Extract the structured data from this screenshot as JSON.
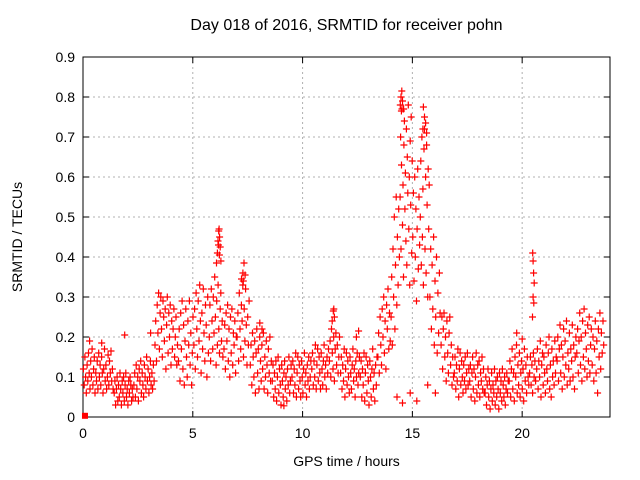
{
  "chart_data": {
    "type": "scatter",
    "title": "Day 018 of 2016, SRMTID for receiver pohn",
    "xlabel": "GPS time / hours",
    "ylabel": "SRMTID / TECUs",
    "xlim": [
      0,
      24
    ],
    "ylim": [
      0,
      0.9
    ],
    "xticks": [
      0,
      5,
      10,
      15,
      20
    ],
    "xtick_labels": [
      "0",
      "5",
      "10",
      "15",
      "20"
    ],
    "yticks": [
      0,
      0.1,
      0.2,
      0.3,
      0.4,
      0.5,
      0.6,
      0.7,
      0.8,
      0.9
    ],
    "ytick_labels": [
      "0",
      "0.1",
      "0.2",
      "0.3",
      "0.4",
      "0.5",
      "0.6",
      "0.7",
      "0.8",
      "0.9"
    ],
    "grid": true,
    "legend": "none",
    "marker": "plus",
    "origin_point": {
      "x": 0.09,
      "y": 0.003,
      "style": "filled-square"
    },
    "series_segments": [
      {
        "t0": 0.02,
        "dt": 0.033,
        "ys": [
          0.12,
          0.08,
          0.15,
          0.1,
          0.06,
          0.13,
          0.09,
          0.16,
          0.11,
          0.07,
          0.14,
          0.1,
          0.17,
          0.08,
          0.12,
          0.15,
          0.06,
          0.11,
          0.09,
          0.14,
          0.07,
          0.16,
          0.1,
          0.13,
          0.08,
          0.15,
          0.11,
          0.06,
          0.12,
          0.17,
          0.09,
          0.13,
          0.07,
          0.1,
          0.155,
          0.08,
          0.14,
          0.11,
          0.165,
          0.09,
          0.12,
          0.07
        ]
      },
      {
        "t0": 1.42,
        "dt": 0.033,
        "ys": [
          0.06,
          0.09,
          0.03,
          0.07,
          0.1,
          0.04,
          0.08,
          0.05,
          0.11,
          0.07,
          0.03,
          0.09,
          0.06,
          0.1,
          0.04,
          0.08,
          0.11,
          0.05,
          0.07,
          0.03,
          0.09,
          0.06,
          0.1,
          0.08,
          0.04,
          0.07,
          0.05
        ]
      },
      {
        "t0": 2.32,
        "dt": 0.034,
        "ys": [
          0.08,
          0.11,
          0.05,
          0.13,
          0.07,
          0.1,
          0.04,
          0.12,
          0.09,
          0.14,
          0.06,
          0.11,
          0.08,
          0.05,
          0.13,
          0.1,
          0.07,
          0.15,
          0.09,
          0.12,
          0.06,
          0.1,
          0.14,
          0.08,
          0.11,
          0.07,
          0.13,
          0.09
        ]
      },
      {
        "t0": 3.28,
        "dt": 0.033,
        "ys": [
          0.18,
          0.24,
          0.14,
          0.28,
          0.21,
          0.31,
          0.17,
          0.26,
          0.3,
          0.22,
          0.15,
          0.29,
          0.25,
          0.19,
          0.27,
          0.12,
          0.23,
          0.3,
          0.16,
          0.26,
          0.2,
          0.28,
          0.13,
          0.24,
          0.17,
          0.22,
          0.27,
          0.15,
          0.2,
          0.25,
          0.13,
          0.18
        ]
      },
      {
        "t0": 4.35,
        "dt": 0.033,
        "ys": [
          0.14,
          0.22,
          0.09,
          0.26,
          0.17,
          0.29,
          0.12,
          0.23,
          0.08,
          0.19,
          0.27,
          0.15,
          0.1,
          0.24,
          0.18,
          0.29,
          0.13,
          0.21,
          0.08,
          0.16,
          0.25
        ]
      },
      {
        "t0": 5.05,
        "dt": 0.033,
        "ys": [
          0.18,
          0.27,
          0.12,
          0.31,
          0.22,
          0.15,
          0.29,
          0.19,
          0.33,
          0.24,
          0.11,
          0.26,
          0.17,
          0.32,
          0.21,
          0.14,
          0.28,
          0.23,
          0.1,
          0.3,
          0.16
        ]
      },
      {
        "t0": 5.75,
        "dt": 0.031,
        "ys": [
          0.2,
          0.28,
          0.14,
          0.32,
          0.24,
          0.17,
          0.3,
          0.21,
          0.35,
          0.25,
          0.13,
          0.29,
          0.18,
          0.33,
          0.22,
          0.16,
          0.27,
          0.31,
          0.19,
          0.24,
          0.15
        ]
      },
      {
        "t0": 6.42,
        "dt": 0.033,
        "ys": [
          0.17,
          0.23,
          0.12,
          0.26,
          0.19,
          0.28,
          0.14,
          0.22,
          0.1,
          0.25,
          0.16,
          0.27,
          0.13,
          0.21,
          0.18,
          0.24,
          0.11,
          0.2
        ]
      },
      {
        "t0": 7.02,
        "dt": 0.032,
        "ys": [
          0.2,
          0.26,
          0.14,
          0.31,
          0.22,
          0.17,
          0.28,
          0.24,
          0.33,
          0.15,
          0.27,
          0.19,
          0.32,
          0.23,
          0.13,
          0.25,
          0.18,
          0.29
        ]
      },
      {
        "t0": 7.62,
        "dt": 0.033,
        "ys": [
          0.13,
          0.18,
          0.08,
          0.21,
          0.15,
          0.1,
          0.19,
          0.06,
          0.16,
          0.22,
          0.11,
          0.17,
          0.07,
          0.2,
          0.14,
          0.09,
          0.18,
          0.12,
          0.21,
          0.07,
          0.15,
          0.1,
          0.19,
          0.13,
          0.06,
          0.17,
          0.11,
          0.2,
          0.09,
          0.14
        ]
      },
      {
        "t0": 8.62,
        "dt": 0.033,
        "ys": [
          0.09,
          0.13,
          0.05,
          0.11,
          0.07,
          0.14,
          0.04,
          0.1,
          0.15,
          0.06,
          0.12,
          0.08,
          0.03,
          0.13,
          0.09,
          0.05,
          0.11,
          0.14,
          0.07,
          0.1,
          0.04,
          0.12,
          0.08,
          0.15,
          0.06,
          0.09,
          0.13
        ]
      },
      {
        "t0": 9.52,
        "dt": 0.033,
        "ys": [
          0.1,
          0.14,
          0.06,
          0.12,
          0.08,
          0.16,
          0.05,
          0.11,
          0.15,
          0.07,
          0.13,
          0.09,
          0.05,
          0.14,
          0.1,
          0.06,
          0.12,
          0.16,
          0.08,
          0.11,
          0.05,
          0.13,
          0.09,
          0.15,
          0.07,
          0.1,
          0.14
        ]
      },
      {
        "t0": 10.42,
        "dt": 0.033,
        "ys": [
          0.12,
          0.16,
          0.08,
          0.14,
          0.1,
          0.18,
          0.07,
          0.13,
          0.17,
          0.09,
          0.15,
          0.11,
          0.07,
          0.16,
          0.12,
          0.08,
          0.14,
          0.18,
          0.1,
          0.13,
          0.07,
          0.15,
          0.11,
          0.17
        ]
      },
      {
        "t0": 11.22,
        "dt": 0.033,
        "ys": [
          0.14,
          0.19,
          0.1,
          0.22,
          0.16,
          0.12,
          0.2,
          0.09,
          0.17,
          0.21,
          0.13,
          0.18,
          0.11,
          0.15,
          0.2
        ]
      },
      {
        "t0": 11.73,
        "dt": 0.033,
        "ys": [
          0.11,
          0.15,
          0.07,
          0.13,
          0.09,
          0.17,
          0.05,
          0.12,
          0.16,
          0.08,
          0.14,
          0.1,
          0.06,
          0.15,
          0.11,
          0.07,
          0.13,
          0.17,
          0.09,
          0.12,
          0.05,
          0.14,
          0.1,
          0.16,
          0.08,
          0.11,
          0.15
        ]
      },
      {
        "t0": 12.63,
        "dt": 0.033,
        "ys": [
          0.1,
          0.14,
          0.05,
          0.12,
          0.08,
          0.16,
          0.04,
          0.11,
          0.15,
          0.06,
          0.13,
          0.09,
          0.03,
          0.14,
          0.1,
          0.05,
          0.12,
          0.17,
          0.07,
          0.11,
          0.04,
          0.13,
          0.08,
          0.15
        ]
      },
      {
        "t0": 13.43,
        "dt": 0.033,
        "ys": [
          0.15,
          0.21,
          0.11,
          0.25,
          0.18,
          0.13,
          0.27,
          0.2,
          0.3,
          0.16,
          0.24,
          0.12,
          0.28,
          0.22,
          0.32,
          0.17,
          0.26,
          0.19
        ]
      },
      {
        "t0": 14.03,
        "dt": 0.029,
        "ys": [
          0.25,
          0.35,
          0.18,
          0.42,
          0.3,
          0.5,
          0.22,
          0.38,
          0.55,
          0.28,
          0.45,
          0.33,
          0.52,
          0.4
        ]
      },
      {
        "t0": 14.44,
        "dt": 0.022,
        "ys": [
          0.55,
          0.7,
          0.42,
          0.63,
          0.77,
          0.48,
          0.58,
          0.35,
          0.68,
          0.74,
          0.52,
          0.61,
          0.44,
          0.72,
          0.38,
          0.65,
          0.56,
          0.78,
          0.47,
          0.6,
          0.33,
          0.69,
          0.53,
          0.75,
          0.41,
          0.64
        ]
      },
      {
        "t0": 15.02,
        "dt": 0.028,
        "ys": [
          0.45,
          0.56,
          0.34,
          0.6,
          0.4,
          0.52,
          0.29,
          0.47,
          0.62,
          0.37,
          0.55,
          0.43
        ]
      },
      {
        "t0": 15.36,
        "dt": 0.024,
        "ys": [
          0.5,
          0.64,
          0.38,
          0.7,
          0.45,
          0.57,
          0.33,
          0.67,
          0.72,
          0.42,
          0.6,
          0.36,
          0.68,
          0.53,
          0.3,
          0.62,
          0.47,
          0.58
        ]
      },
      {
        "t0": 15.8,
        "dt": 0.033,
        "ys": [
          0.3,
          0.42,
          0.22,
          0.38,
          0.27,
          0.45,
          0.18,
          0.34,
          0.25,
          0.4,
          0.16,
          0.31,
          0.21,
          0.36,
          0.26
        ]
      },
      {
        "t0": 16.31,
        "dt": 0.033,
        "ys": [
          0.18,
          0.25,
          0.12,
          0.22,
          0.26,
          0.15,
          0.2,
          0.09,
          0.24,
          0.16,
          0.11,
          0.21,
          0.25,
          0.13,
          0.18,
          0.08,
          0.15,
          0.1
        ]
      },
      {
        "t0": 16.91,
        "dt": 0.033,
        "ys": [
          0.11,
          0.15,
          0.07,
          0.13,
          0.09,
          0.17,
          0.05,
          0.12,
          0.16,
          0.08,
          0.14,
          0.1,
          0.06,
          0.13,
          0.09,
          0.15,
          0.07,
          0.11,
          0.16,
          0.08,
          0.12
        ]
      },
      {
        "t0": 17.61,
        "dt": 0.033,
        "ys": [
          0.09,
          0.13,
          0.05,
          0.11,
          0.15,
          0.07,
          0.12,
          0.04,
          0.1,
          0.16,
          0.06,
          0.13,
          0.08,
          0.14,
          0.05,
          0.11,
          0.09,
          0.15,
          0.07,
          0.12,
          0.06
        ]
      },
      {
        "t0": 18.31,
        "dt": 0.033,
        "ys": [
          0.06,
          0.1,
          0.03,
          0.08,
          0.12,
          0.05,
          0.09,
          0.02,
          0.07,
          0.11,
          0.04,
          0.08,
          0.06,
          0.12,
          0.03,
          0.09,
          0.05,
          0.1,
          0.07,
          0.02,
          0.11,
          0.06,
          0.09,
          0.04,
          0.12,
          0.08,
          0.05,
          0.1,
          0.03,
          0.07,
          0.11,
          0.06,
          0.09
        ]
      },
      {
        "t0": 19.41,
        "dt": 0.033,
        "ys": [
          0.09,
          0.14,
          0.05,
          0.12,
          0.17,
          0.07,
          0.11,
          0.04,
          0.15,
          0.1,
          0.18,
          0.06,
          0.13,
          0.08,
          0.16,
          0.05,
          0.11,
          0.14,
          0.07,
          0.12,
          0.04,
          0.17,
          0.09,
          0.13,
          0.06,
          0.15,
          0.1,
          0.08
        ]
      },
      {
        "t0": 20.34,
        "dt": 0.034,
        "ys": [
          0.11,
          0.15,
          0.08,
          0.13,
          0.06,
          0.16,
          0.1,
          0.14,
          0.09
        ]
      },
      {
        "t0": 20.66,
        "dt": 0.033,
        "ys": [
          0.12,
          0.17,
          0.07,
          0.14,
          0.1,
          0.19,
          0.05,
          0.13,
          0.16,
          0.08,
          0.15,
          0.11,
          0.06,
          0.18,
          0.12,
          0.09,
          0.16,
          0.2,
          0.07,
          0.13,
          0.05,
          0.17,
          0.1,
          0.14,
          0.08,
          0.19,
          0.11,
          0.15
        ]
      },
      {
        "t0": 21.59,
        "dt": 0.033,
        "ys": [
          0.14,
          0.2,
          0.09,
          0.17,
          0.23,
          0.11,
          0.18,
          0.07,
          0.15,
          0.22,
          0.1,
          0.19,
          0.13,
          0.24,
          0.08,
          0.16,
          0.12,
          0.21,
          0.09,
          0.17,
          0.14,
          0.23,
          0.1,
          0.18,
          0.07,
          0.15,
          0.2
        ]
      },
      {
        "t0": 22.49,
        "dt": 0.033,
        "ys": [
          0.16,
          0.22,
          0.11,
          0.19,
          0.26,
          0.13,
          0.2,
          0.09,
          0.24,
          0.15,
          0.27,
          0.12,
          0.21,
          0.17,
          0.1,
          0.23,
          0.14,
          0.25,
          0.11,
          0.18,
          0.22
        ]
      },
      {
        "t0": 23.19,
        "dt": 0.035,
        "ys": [
          0.13,
          0.2,
          0.09,
          0.17,
          0.24,
          0.11,
          0.19,
          0.06,
          0.22,
          0.15,
          0.26,
          0.12,
          0.21,
          0.16,
          0.24,
          0.18
        ]
      }
    ],
    "extra_points": [
      [
        0.3,
        0.19
      ],
      [
        0.85,
        0.185
      ],
      [
        1.9,
        0.205
      ],
      [
        3.08,
        0.21
      ],
      [
        6.08,
        0.385
      ],
      [
        6.12,
        0.41
      ],
      [
        6.15,
        0.44
      ],
      [
        6.17,
        0.43
      ],
      [
        6.18,
        0.465
      ],
      [
        6.2,
        0.47
      ],
      [
        6.21,
        0.405
      ],
      [
        6.22,
        0.45
      ],
      [
        6.25,
        0.425
      ],
      [
        6.28,
        0.39
      ],
      [
        7.22,
        0.345
      ],
      [
        7.28,
        0.36
      ],
      [
        7.3,
        0.34
      ],
      [
        7.33,
        0.385
      ],
      [
        7.38,
        0.355
      ],
      [
        8.05,
        0.235
      ],
      [
        8.15,
        0.22
      ],
      [
        9.15,
        0.028
      ],
      [
        11.35,
        0.24
      ],
      [
        11.4,
        0.265
      ],
      [
        11.42,
        0.27
      ],
      [
        11.45,
        0.25
      ],
      [
        12.45,
        0.2
      ],
      [
        12.55,
        0.215
      ],
      [
        14.45,
        0.78
      ],
      [
        14.48,
        0.8
      ],
      [
        14.5,
        0.765
      ],
      [
        14.52,
        0.815
      ],
      [
        14.55,
        0.79
      ],
      [
        14.6,
        0.77
      ],
      [
        15.48,
        0.72
      ],
      [
        15.5,
        0.775
      ],
      [
        15.55,
        0.75
      ],
      [
        15.6,
        0.735
      ],
      [
        15.65,
        0.71
      ],
      [
        14.3,
        0.05
      ],
      [
        14.55,
        0.035
      ],
      [
        14.9,
        0.06
      ],
      [
        15.2,
        0.04
      ],
      [
        15.7,
        0.08
      ],
      [
        16.05,
        0.06
      ],
      [
        19.75,
        0.21
      ],
      [
        20.0,
        0.195
      ],
      [
        20.47,
        0.25
      ],
      [
        20.48,
        0.41
      ],
      [
        20.5,
        0.39
      ],
      [
        20.5,
        0.3
      ],
      [
        20.52,
        0.36
      ],
      [
        20.53,
        0.285
      ],
      [
        20.55,
        0.335
      ]
    ]
  },
  "colors": {
    "marker": "#ff0000",
    "grid": "#b0b0b0",
    "axis": "#000000",
    "text": "#000000",
    "background": "#ffffff"
  }
}
